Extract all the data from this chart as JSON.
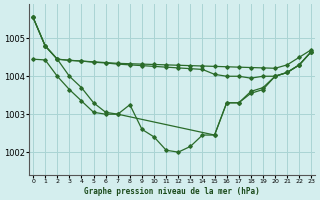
{
  "title": "Graphe pression niveau de la mer (hPa)",
  "bg_color": "#d4eeee",
  "grid_color": "#aad4d4",
  "line_color": "#2a6b2a",
  "x_ticks": [
    0,
    1,
    2,
    3,
    4,
    5,
    6,
    7,
    8,
    9,
    10,
    11,
    12,
    13,
    14,
    15,
    16,
    17,
    18,
    19,
    20,
    21,
    22,
    23
  ],
  "y_ticks": [
    1002,
    1003,
    1004,
    1005
  ],
  "ylim": [
    1001.4,
    1005.9
  ],
  "xlim": [
    -0.3,
    23.3
  ],
  "series": [
    [
      1005.55,
      1004.8,
      1004.45,
      1004.42,
      1004.4,
      1004.38,
      1004.36,
      1004.34,
      1004.33,
      1004.32,
      1004.31,
      1004.3,
      1004.29,
      1004.28,
      1004.27,
      1004.26,
      1004.25,
      1004.24,
      1004.23,
      1004.22,
      1004.21,
      1004.3,
      1004.5,
      1004.7
    ],
    [
      1005.55,
      1004.8,
      1004.45,
      1004.42,
      1004.4,
      1004.37,
      1004.35,
      1004.32,
      1004.3,
      1004.28,
      1004.26,
      1004.24,
      1004.22,
      1004.2,
      1004.18,
      1004.05,
      1004.0,
      1004.0,
      1003.95,
      1004.0,
      1004.0,
      1004.1,
      1004.3,
      1004.65
    ],
    [
      1005.55,
      1004.8,
      1004.45,
      1004.0,
      1003.7,
      1003.3,
      1003.05,
      1003.0,
      1003.25,
      1002.6,
      1002.4,
      1002.05,
      1002.0,
      1002.15,
      1002.45,
      1002.45,
      1003.3,
      1003.3,
      1003.55,
      1003.65,
      1004.0,
      1004.1,
      1004.3,
      1004.65
    ],
    [
      1004.45,
      1004.43,
      1004.0,
      1003.65,
      1003.35,
      1003.05,
      1003.0,
      1003.0,
      null,
      null,
      null,
      null,
      null,
      null,
      null,
      1002.45,
      1003.3,
      1003.3,
      1003.6,
      1003.7,
      1004.0,
      1004.1,
      1004.3,
      1004.65
    ]
  ]
}
